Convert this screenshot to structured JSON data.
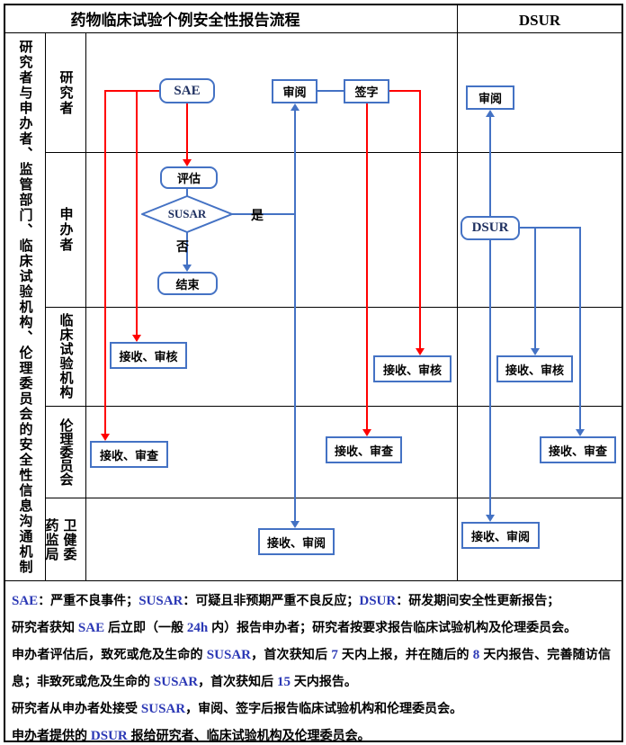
{
  "header": {
    "flow_title": "药物临床试验个例安全性报告流程",
    "dsur_title": "DSUR"
  },
  "left_axis_label": "研究者与申办者、监管部门、临床试验机构、伦理委员会的安全性信息沟通机制",
  "row_labels": {
    "investigator": "研究者",
    "sponsor": "申办者",
    "institution": "临床试验机构",
    "ethics_committee": "伦理委员会",
    "health_commission": "卫健委",
    "drug_administration": "药监局"
  },
  "nodes": {
    "sae": "SAE",
    "review_top": "审阅",
    "sign": "签字",
    "dsur_review": "审阅",
    "evaluate": "评估",
    "susar": "SUSAR",
    "end": "结束",
    "dsur": "DSUR",
    "receive_check_inst_left": "接收、审核",
    "receive_check_inst_mid": "接收、审核",
    "receive_check_inst_dsur": "接收、审核",
    "receive_review_ethics_left": "接收、审查",
    "receive_review_ethics_mid": "接收、审查",
    "receive_review_ethics_dsur": "接收、审查",
    "receive_read_admin_mid": "接收、审阅",
    "receive_read_admin_dsur": "接收、审阅",
    "yes_label": "是",
    "no_label": "否"
  },
  "colors": {
    "line_blue": "#4472c4",
    "line_red": "#ff0000",
    "latin_text_blue": "#2b38b5",
    "grid_black": "#000000"
  },
  "footnotes": [
    [
      {
        "t": "SAE",
        "b": 1
      },
      {
        "t": "：严重不良事件；",
        "b": 0
      },
      {
        "t": "SUSAR",
        "b": 1
      },
      {
        "t": "：可疑且非预期严重不良反应；",
        "b": 0
      },
      {
        "t": "DSUR",
        "b": 1
      },
      {
        "t": "：研发期间安全性更新报告；",
        "b": 0
      }
    ],
    [
      {
        "t": "研究者获知 ",
        "b": 0
      },
      {
        "t": "SAE",
        "b": 1
      },
      {
        "t": " 后立即（一般 ",
        "b": 0
      },
      {
        "t": "24h",
        "b": 1
      },
      {
        "t": " 内）报告申办者；研究者按要求报告临床试验机构及伦理委员会。",
        "b": 0
      }
    ],
    [
      {
        "t": "申办者评估后，致死或危及生命的 ",
        "b": 0
      },
      {
        "t": "SUSAR",
        "b": 1
      },
      {
        "t": "，首次获知后 ",
        "b": 0
      },
      {
        "t": "7",
        "b": 1
      },
      {
        "t": " 天内上报，并在随后的 ",
        "b": 0
      },
      {
        "t": "8",
        "b": 1
      },
      {
        "t": " 天内报告、完善随访信息；非致死或危及生命的 ",
        "b": 0
      },
      {
        "t": "SUSAR",
        "b": 1
      },
      {
        "t": "，首次获知后 ",
        "b": 0
      },
      {
        "t": "15",
        "b": 1
      },
      {
        "t": " 天内报告。",
        "b": 0
      }
    ],
    [
      {
        "t": "研究者从申办者处接受 ",
        "b": 0
      },
      {
        "t": "SUSAR",
        "b": 1
      },
      {
        "t": "，审阅、签字后报告临床试验机构和伦理委员会。",
        "b": 0
      }
    ],
    [
      {
        "t": "申办者提供的 ",
        "b": 0
      },
      {
        "t": "DSUR",
        "b": 1
      },
      {
        "t": " 报给研究者、临床试验机构及伦理委员会。",
        "b": 0
      }
    ]
  ]
}
